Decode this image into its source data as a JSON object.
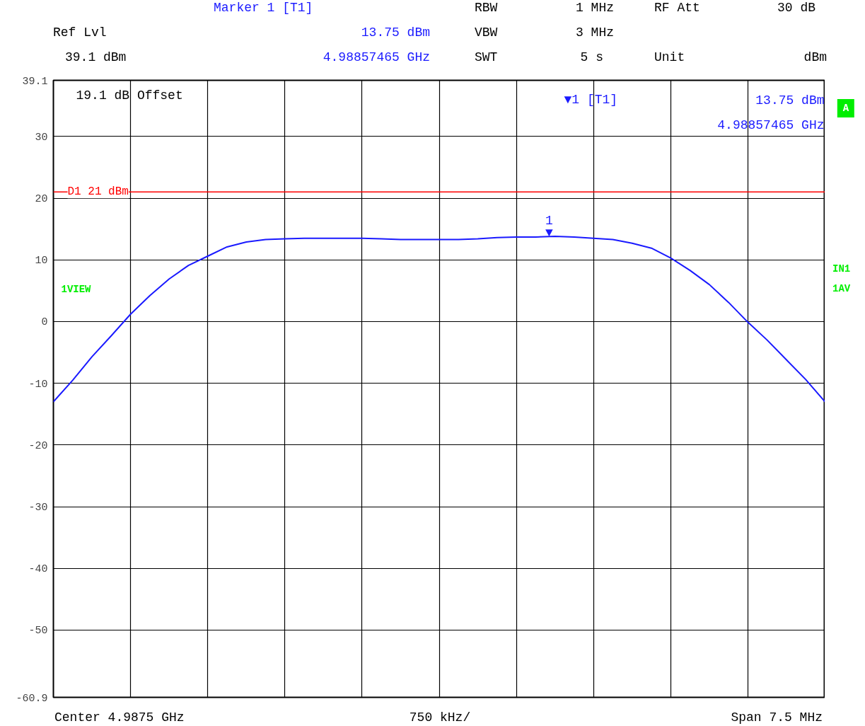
{
  "chart_data": {
    "type": "line",
    "categories": [
      null,
      null,
      null,
      null,
      null,
      null,
      null,
      null,
      null,
      null,
      null,
      null,
      null,
      null,
      null,
      null,
      null,
      null,
      null,
      null,
      null,
      null,
      null,
      null,
      null,
      null,
      null,
      null,
      null,
      null,
      null,
      null,
      null,
      null,
      null,
      null,
      null,
      null,
      null,
      null,
      null
    ],
    "values": [
      -13.0,
      -9.5,
      -5.7,
      -2.3,
      1.2,
      4.2,
      6.9,
      9.1,
      10.6,
      12.1,
      12.9,
      13.3,
      13.4,
      13.5,
      13.5,
      13.5,
      13.5,
      13.4,
      13.3,
      13.3,
      13.3,
      13.3,
      13.4,
      13.6,
      13.7,
      13.7,
      13.8,
      13.7,
      13.5,
      13.3,
      12.7,
      11.9,
      10.3,
      8.3,
      6.0,
      3.1,
      -0.1,
      -3.0,
      -6.2,
      -9.4,
      -13.0
    ],
    "color": "#1a1aff",
    "line_style": "solid",
    "ylim": [
      -60.9,
      39.1
    ],
    "yticks": [
      -60.9,
      -50,
      -40,
      -30,
      -20,
      -10,
      0,
      10,
      20,
      30,
      39.1
    ],
    "grid": true,
    "tick_labels": "y",
    "ref_lines": [
      {
        "axis": "y",
        "value": 21,
        "label": "D1 21 dBm",
        "color": "#ff0000"
      }
    ],
    "annotations": [
      "1",
      "▼",
      "Marker 1 [T1]",
      "13.75 dBm",
      "4.98857465 GHz",
      "Ref Lvl",
      "39.1 dBm",
      "RBW",
      "1 MHz",
      "VBW",
      "3 MHz",
      "SWT",
      "5 s",
      "RF Att",
      "30 dB",
      "Unit",
      "dBm",
      "19.1 dB Offset",
      "▼1 [T1]",
      "13.75 dBm",
      "4.98857465 GHz",
      "A",
      "1VIEW",
      "IN1",
      "1AV",
      "Center 4.9875 GHz",
      "750 kHz/",
      "Span 7.5 MHz"
    ]
  }
}
